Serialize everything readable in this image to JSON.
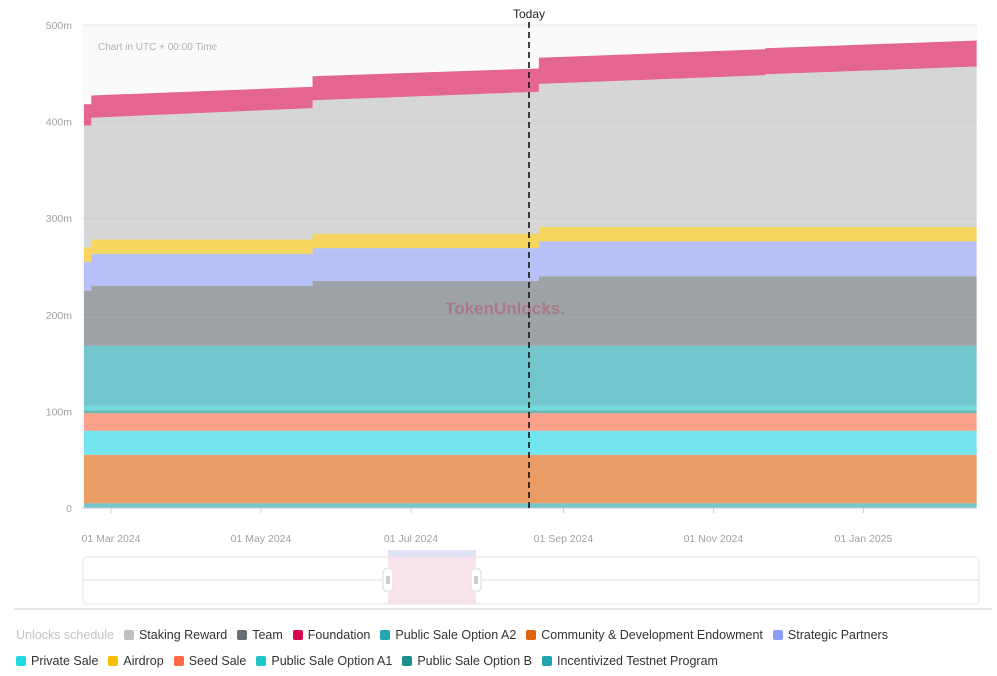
{
  "chart_data": {
    "type": "area",
    "stacked": true,
    "step": true,
    "annotation": "Chart in UTC + 00:00 Time",
    "today_label": "Today",
    "today_date": "2024-08-18",
    "watermark": "TokenUnlocks.",
    "y_ticks": [
      "0",
      "100m",
      "200m",
      "300m",
      "400m",
      "500m"
    ],
    "ylim": [
      0,
      500
    ],
    "x_ticks": [
      {
        "date": "2024-03-01",
        "label": "01 Mar 2024"
      },
      {
        "date": "2024-05-01",
        "label": "01 May 2024"
      },
      {
        "date": "2024-07-01",
        "label": "01 Jul 2024"
      },
      {
        "date": "2024-09-01",
        "label": "01 Sep 2024"
      },
      {
        "date": "2024-11-01",
        "label": "01 Nov 2024"
      },
      {
        "date": "2025-01-01",
        "label": "01 Jan 2025"
      }
    ],
    "x": [
      "2024-02-19",
      "2024-02-22",
      "2024-02-22",
      "2024-05-22",
      "2024-05-22",
      "2024-08-22",
      "2024-08-22",
      "2024-11-22",
      "2024-11-22",
      "2025-02-16"
    ],
    "series": [
      {
        "name": "Incentivized Testnet Program",
        "color": "#20a5b0",
        "values": [
          5,
          5,
          5,
          5,
          5,
          5,
          5,
          5,
          5,
          5
        ]
      },
      {
        "name": "Community & Development Endowment",
        "color": "#e0620a",
        "values": [
          50,
          50,
          50,
          50,
          50,
          50,
          50,
          50,
          50,
          50
        ]
      },
      {
        "name": "Private Sale",
        "color": "#22d8e6",
        "values": [
          25,
          25,
          25,
          25,
          25,
          25,
          25,
          25,
          25,
          25
        ]
      },
      {
        "name": "Seed Sale",
        "color": "#ff6a45",
        "values": [
          18,
          18,
          18,
          18,
          18,
          18,
          18,
          18,
          18,
          18
        ]
      },
      {
        "name": "Public Sale Option B",
        "color": "#1a8f8c",
        "values": [
          3,
          3,
          3,
          3,
          3,
          3,
          3,
          3,
          3,
          3
        ]
      },
      {
        "name": "Public Sale Option A1",
        "color": "#1ec6cc",
        "values": [
          5,
          5,
          5,
          5,
          5,
          5,
          5,
          5,
          5,
          5
        ]
      },
      {
        "name": "Public Sale Option A2",
        "color": "#20a8b0",
        "values": [
          62,
          62,
          62,
          62,
          62,
          62,
          62,
          62,
          62,
          62
        ]
      },
      {
        "name": "Team",
        "color": "#666e75",
        "values": [
          57,
          57,
          62,
          62,
          67,
          67,
          72,
          72,
          72,
          72
        ]
      },
      {
        "name": "Strategic Partners",
        "color": "#8f9ef5",
        "values": [
          30,
          30,
          33,
          33,
          34,
          34,
          36,
          36,
          36,
          36
        ]
      },
      {
        "name": "Airdrop",
        "color": "#f6c000",
        "values": [
          15,
          15,
          15,
          15,
          15,
          15,
          15,
          15,
          15,
          15
        ]
      },
      {
        "name": "Staking Reward",
        "color": "#c0c0c0",
        "values": [
          126,
          126,
          126,
          136,
          138,
          147,
          148,
          157,
          158,
          166
        ]
      },
      {
        "name": "Foundation",
        "color": "#d6094f",
        "values": [
          22,
          22,
          23,
          22,
          25,
          24,
          27,
          27,
          27,
          27
        ]
      }
    ]
  },
  "legend": {
    "title": "Unlocks schedule",
    "rows": [
      [
        {
          "label": "Staking Reward",
          "color": "#c0c0c0"
        },
        {
          "label": "Team",
          "color": "#666e75"
        },
        {
          "label": "Foundation",
          "color": "#d6094f"
        },
        {
          "label": "Public Sale Option A2",
          "color": "#20a8b0"
        },
        {
          "label": "Community & Development Endowment",
          "color": "#e0620a"
        },
        {
          "label": "Strategic Partners",
          "color": "#8f9ef5"
        }
      ],
      [
        {
          "label": "Private Sale",
          "color": "#22d8e6"
        },
        {
          "label": "Airdrop",
          "color": "#f6c000"
        },
        {
          "label": "Seed Sale",
          "color": "#ff6a45"
        },
        {
          "label": "Public Sale Option A1",
          "color": "#1ec6cc"
        },
        {
          "label": "Public Sale Option B",
          "color": "#1a8f8c"
        },
        {
          "label": "Incentivized Testnet Program",
          "color": "#20a5b0"
        }
      ]
    ]
  }
}
